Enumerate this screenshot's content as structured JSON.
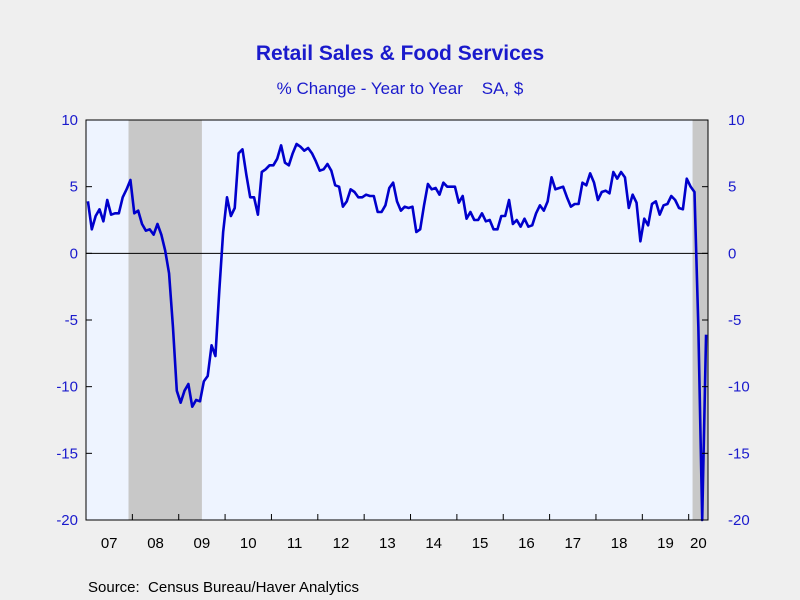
{
  "chart_data": {
    "type": "line",
    "title": "Retail Sales & Food Services",
    "subtitle": "% Change - Year to Year    SA, $",
    "source": "Source:  Census Bureau/Haver Analytics",
    "x_range": [
      "2007-01",
      "2020-05"
    ],
    "ylim": [
      -20,
      10
    ],
    "yticks": [
      10,
      5,
      0,
      -5,
      -10,
      -15,
      -20
    ],
    "year_labels": [
      "07",
      "08",
      "09",
      "10",
      "11",
      "12",
      "13",
      "14",
      "15",
      "16",
      "17",
      "18",
      "19",
      "20"
    ],
    "grid": false,
    "zero_line": true,
    "recessions": [
      {
        "start": "2007-12",
        "end": "2009-06"
      },
      {
        "start": "2020-02",
        "end": "2020-05"
      }
    ],
    "colors": {
      "line": "#0000cc",
      "recession": "#c8c8c8",
      "plot_bg": "#eef4ff",
      "text": "#1a1acc"
    },
    "series": [
      {
        "start": "2007-01",
        "values": [
          3.9,
          1.8,
          2.8,
          3.3,
          2.4,
          4.0,
          2.9,
          3.0,
          3.0,
          4.2,
          4.8,
          5.5,
          3.0,
          3.2,
          2.2,
          1.7,
          1.8,
          1.4,
          2.2,
          1.4,
          0.2,
          -1.5,
          -5.5,
          -10.3,
          -11.2,
          -10.3,
          -9.8,
          -11.5,
          -11.0,
          -11.1,
          -9.6,
          -9.2,
          -6.9,
          -7.7,
          -2.8,
          1.6,
          4.2,
          2.8,
          3.4,
          7.5,
          7.8,
          5.9,
          4.2,
          4.2,
          2.9,
          6.1,
          6.3,
          6.6,
          6.6,
          7.1,
          8.1,
          6.8,
          6.6,
          7.5,
          8.2,
          8.0,
          7.7,
          7.9,
          7.5,
          6.9,
          6.2,
          6.3,
          6.7,
          6.2,
          5.1,
          5.0,
          3.5,
          3.9,
          4.8,
          4.6,
          4.2,
          4.2,
          4.4,
          4.3,
          4.3,
          3.1,
          3.1,
          3.6,
          4.9,
          5.3,
          3.9,
          3.2,
          3.5,
          3.4,
          3.5,
          1.6,
          1.8,
          3.6,
          5.2,
          4.8,
          4.9,
          4.4,
          5.3,
          5.0,
          5.0,
          5.0,
          3.8,
          4.3,
          2.6,
          3.1,
          2.5,
          2.5,
          3.0,
          2.4,
          2.5,
          1.8,
          1.8,
          2.8,
          2.8,
          4.0,
          2.2,
          2.5,
          2.0,
          2.6,
          2.0,
          2.1,
          3.0,
          3.6,
          3.2,
          3.9,
          5.7,
          4.8,
          4.9,
          5.0,
          4.2,
          3.5,
          3.7,
          3.7,
          5.3,
          5.1,
          6.0,
          5.3,
          4.0,
          4.6,
          4.7,
          4.5,
          6.1,
          5.6,
          6.1,
          5.7,
          3.4,
          4.4,
          3.8,
          0.9,
          2.6,
          2.1,
          3.7,
          3.9,
          2.9,
          3.6,
          3.7,
          4.3,
          4.0,
          3.4,
          3.3,
          5.6,
          5.0,
          4.6,
          -5.5,
          -20.0,
          -6.1
        ]
      }
    ]
  }
}
